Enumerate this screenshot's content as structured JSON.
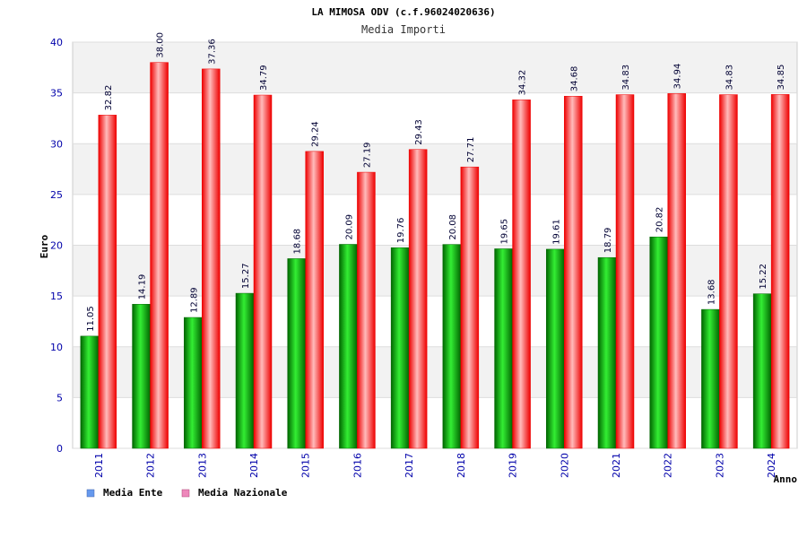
{
  "chart_data": {
    "type": "bar",
    "title": "LA MIMOSA ODV (c.f.96024020636)",
    "subtitle": "Media Importi",
    "ylabel": "Euro",
    "xlabel": "Anno",
    "ylim": [
      0,
      40
    ],
    "yticks": [
      0,
      5,
      10,
      15,
      20,
      25,
      30,
      35,
      40
    ],
    "categories": [
      "2011",
      "2012",
      "2013",
      "2014",
      "2015",
      "2016",
      "2017",
      "2018",
      "2019",
      "2020",
      "2021",
      "2022",
      "2023",
      "2024"
    ],
    "series": [
      {
        "name": "Media Ente",
        "values": [
          11.05,
          14.19,
          12.89,
          15.27,
          18.68,
          20.09,
          19.76,
          20.08,
          19.65,
          19.61,
          18.79,
          20.82,
          13.68,
          15.22
        ],
        "labels": [
          "11.05",
          "14.19",
          "12.89",
          "15.27",
          "18.68",
          "20.09",
          "19.76",
          "20.08",
          "19.65",
          "19.61",
          "18.79",
          "20.82",
          "13.68",
          "15.22"
        ]
      },
      {
        "name": "Media Nazionale",
        "values": [
          32.82,
          38.0,
          37.36,
          34.79,
          29.24,
          27.19,
          29.43,
          27.71,
          34.32,
          34.68,
          34.83,
          34.94,
          34.83,
          34.85
        ],
        "labels": [
          "32.82",
          "38.00",
          "37.36",
          "34.79",
          "29.24",
          "27.19",
          "29.43",
          "27.71",
          "34.32",
          "34.68",
          "34.83",
          "34.94",
          "34.83",
          "34.85"
        ]
      }
    ],
    "legend_position": "bottom-left",
    "grid": true
  },
  "colors": {
    "ente_dark": "#006600",
    "ente_light": "#33ee33",
    "naz_dark": "#ee0000",
    "naz_light": "#ffbbbb",
    "legend_ente": "#6699ee",
    "legend_naz": "#ee88bb",
    "band": "#f2f2f2",
    "grid": "#dddddd"
  }
}
